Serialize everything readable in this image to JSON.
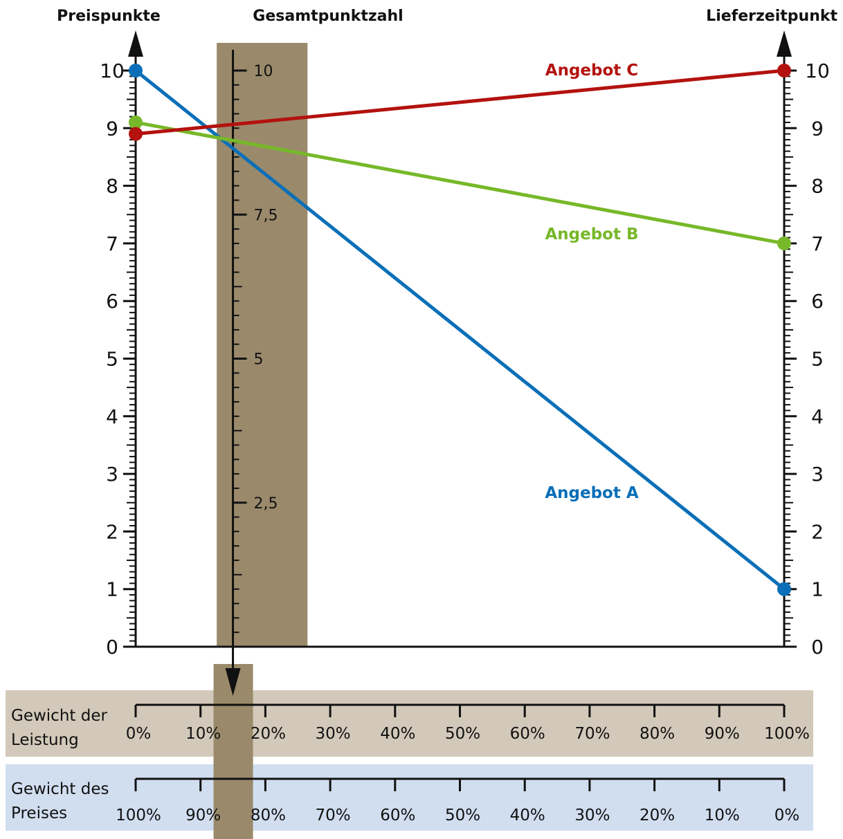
{
  "chart_data": {
    "type": "line",
    "left_axis": {
      "title": "Preispunkte",
      "range": [
        0,
        10
      ],
      "tick_labels": [
        "0",
        "1",
        "2",
        "3",
        "4",
        "5",
        "6",
        "7",
        "8",
        "9",
        "10"
      ]
    },
    "right_axis": {
      "title": "Lieferzeitpunkt",
      "range": [
        0,
        10
      ],
      "tick_labels": [
        "0",
        "1",
        "2",
        "3",
        "4",
        "5",
        "6",
        "7",
        "8",
        "9",
        "10"
      ]
    },
    "total_axis": {
      "title": "Gesamtpunktzahl",
      "tick_labels": [
        {
          "value": 2.5,
          "label": "2,5"
        },
        {
          "value": 5,
          "label": "5"
        },
        {
          "value": 7.5,
          "label": "7,5"
        },
        {
          "value": 10,
          "label": "10"
        }
      ],
      "highlight_weight_percent": 15,
      "highlight_band_percent": [
        12.5,
        26.5
      ]
    },
    "series": [
      {
        "name": "Angebot A",
        "color": "#0a6fb8",
        "price_points": 10,
        "delivery_points": 1
      },
      {
        "name": "Angebot B",
        "color": "#77b829",
        "price_points": 9.1,
        "delivery_points": 7
      },
      {
        "name": "Angebot C",
        "color": "#b3120f",
        "price_points": 8.9,
        "delivery_points": 10
      }
    ],
    "weight_scales": [
      {
        "title_line1": "Gewicht der",
        "title_line2": "Leistung",
        "labels": [
          "0%",
          "10%",
          "20%",
          "30%",
          "40%",
          "50%",
          "60%",
          "70%",
          "80%",
          "90%",
          "100%"
        ],
        "background": "#d3c9ba"
      },
      {
        "title_line1": "Gewicht des",
        "title_line2": "Preises",
        "labels": [
          "100%",
          "90%",
          "80%",
          "70%",
          "60%",
          "50%",
          "40%",
          "30%",
          "20%",
          "10%",
          "0%"
        ],
        "background": "#d1def0"
      }
    ],
    "band_color": "#9a8a6b",
    "grid": false
  }
}
